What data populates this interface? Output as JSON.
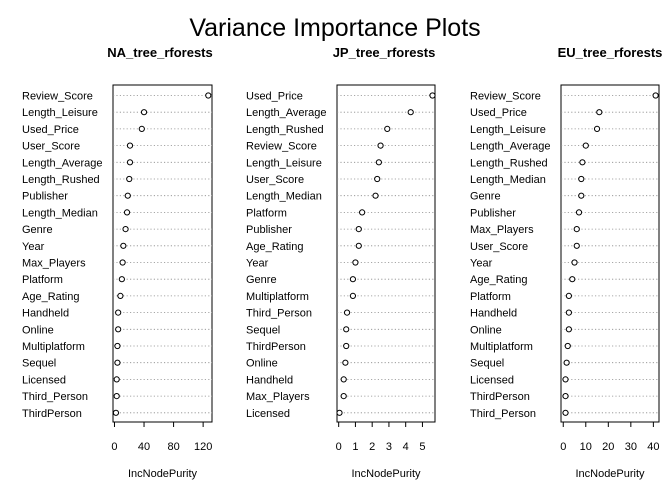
{
  "title": "Variance Importance Plots",
  "chart_data": [
    {
      "type": "scatter",
      "title": "NA_tree_rforests",
      "xlabel": "IncNodePurity",
      "xlim": [
        -2,
        132
      ],
      "xticks": [
        0,
        40,
        80,
        120
      ],
      "categories": [
        "Review_Score",
        "Length_Leisure",
        "Used_Price",
        "User_Score",
        "Length_Average",
        "Length_Rushed",
        "Publisher",
        "Length_Median",
        "Genre",
        "Year",
        "Max_Players",
        "Platform",
        "Age_Rating",
        "Handheld",
        "Online",
        "Multiplatform",
        "Sequel",
        "Licensed",
        "Third_Person",
        "ThirdPerson"
      ],
      "values": [
        127,
        40,
        37,
        21,
        21,
        20,
        18,
        17,
        15,
        12,
        11,
        10,
        8,
        5,
        5,
        4,
        4,
        3,
        3,
        2
      ]
    },
    {
      "type": "scatter",
      "title": "JP_tree_rforests",
      "xlabel": "IncNodePurity",
      "xlim": [
        -0.1,
        5.75
      ],
      "xticks": [
        0,
        1,
        2,
        3,
        4,
        5
      ],
      "categories": [
        "Used_Price",
        "Length_Average",
        "Length_Rushed",
        "Review_Score",
        "Length_Leisure",
        "User_Score",
        "Length_Median",
        "Platform",
        "Publisher",
        "Age_Rating",
        "Year",
        "Genre",
        "Multiplatform",
        "Third_Person",
        "Sequel",
        "ThirdPerson",
        "Online",
        "Handheld",
        "Max_Players",
        "Licensed"
      ],
      "values": [
        5.6,
        4.3,
        2.9,
        2.5,
        2.4,
        2.3,
        2.2,
        1.4,
        1.2,
        1.2,
        1.0,
        0.85,
        0.85,
        0.5,
        0.45,
        0.45,
        0.4,
        0.3,
        0.3,
        0.05
      ]
    },
    {
      "type": "scatter",
      "title": "EU_tree_rforests",
      "xlabel": "IncNodePurity",
      "xlim": [
        -1,
        42.5
      ],
      "xticks": [
        0,
        10,
        20,
        30,
        40
      ],
      "categories": [
        "Review_Score",
        "Used_Price",
        "Length_Leisure",
        "Length_Average",
        "Length_Rushed",
        "Length_Median",
        "Genre",
        "Publisher",
        "Max_Players",
        "User_Score",
        "Year",
        "Age_Rating",
        "Platform",
        "Handheld",
        "Online",
        "Multiplatform",
        "Sequel",
        "Licensed",
        "ThirdPerson",
        "Third_Person"
      ],
      "values": [
        41,
        16,
        15,
        10,
        8.5,
        8,
        8,
        7,
        6,
        6,
        5,
        4,
        2.5,
        2.5,
        2.5,
        2,
        1.5,
        1,
        1,
        1
      ]
    }
  ]
}
